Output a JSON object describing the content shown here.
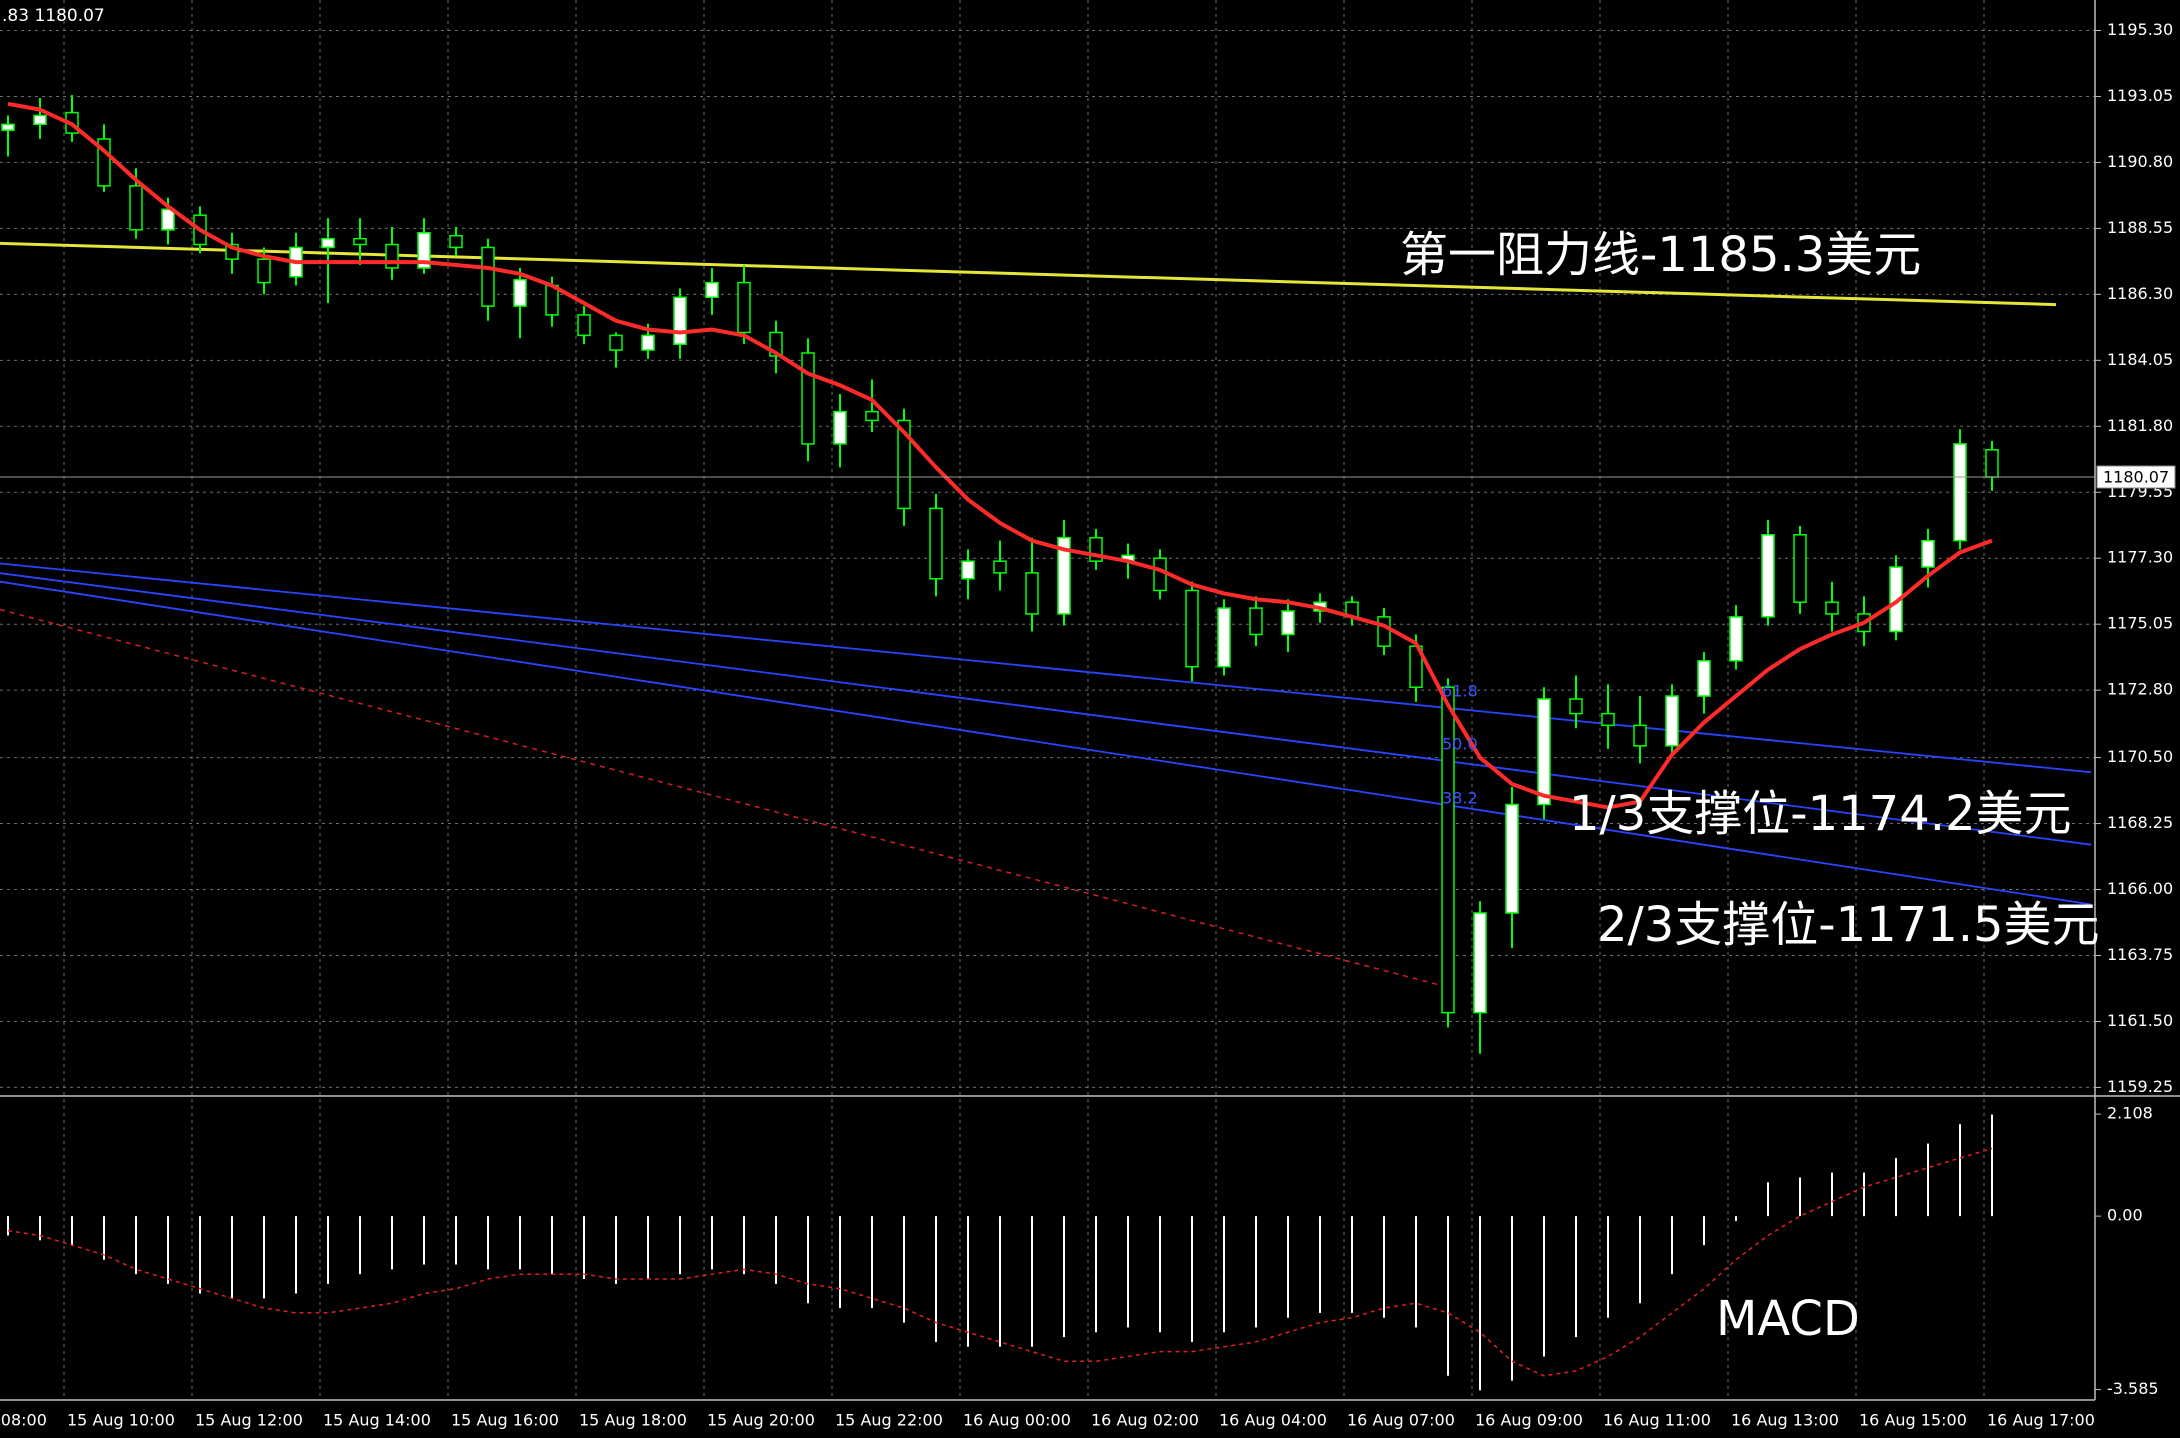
{
  "chart_data": [
    {
      "type": "candlestick",
      "header": ".83 1180.07",
      "categories": [
        "15 Aug 08:00",
        null,
        null,
        null,
        "15 Aug 10:00",
        null,
        null,
        null,
        "15 Aug 12:00",
        null,
        null,
        null,
        "15 Aug 14:00",
        null,
        null,
        null,
        "15 Aug 16:00",
        null,
        null,
        null,
        "15 Aug 18:00",
        null,
        null,
        null,
        "15 Aug 20:00",
        null,
        null,
        null,
        "15 Aug 22:00",
        null,
        null,
        null,
        "16 Aug 00:00",
        null,
        null,
        null,
        "16 Aug 02:00",
        null,
        null,
        null,
        "16 Aug 04:00",
        null,
        null,
        null,
        "16 Aug 07:00",
        null,
        null,
        null,
        "16 Aug 09:00",
        null,
        null,
        null,
        "16 Aug 11:00",
        null,
        null,
        null,
        "16 Aug 13:00",
        null,
        null,
        null,
        "16 Aug 15:00",
        null,
        null,
        null,
        "16 Aug 17:00"
      ],
      "open": [
        null,
        null,
        1191.9,
        1192.1,
        1192.5,
        1191.6,
        1190.0,
        1188.5,
        1189.0,
        1188.0,
        1187.5,
        1186.9,
        1187.9,
        1188.2,
        1188.0,
        1187.2,
        1188.3,
        1187.9,
        1185.9,
        1186.6,
        1185.6,
        1184.9,
        1184.4,
        1184.6,
        1186.2,
        1186.7,
        1185.0,
        1184.3,
        1181.2,
        1182.3,
        1182.0,
        1179.0,
        1176.6,
        1177.2,
        1176.8,
        1175.4,
        1178.0,
        1177.2,
        1177.3,
        1176.2,
        1173.6,
        1175.6,
        1174.7,
        1175.5,
        1175.8,
        1175.3,
        1174.3,
        1172.9,
        1161.8,
        1165.2,
        1168.9,
        1172.5,
        1172.0,
        1171.6,
        1170.9,
        1172.6,
        1173.8,
        1175.3,
        1178.1,
        1175.8,
        1175.4,
        1174.8,
        1177.0,
        1177.9,
        1181.0
      ],
      "high": [
        null,
        null,
        1192.4,
        1193.0,
        1193.1,
        1192.1,
        1190.6,
        1189.6,
        1189.3,
        1188.4,
        1187.9,
        1188.4,
        1188.9,
        1188.9,
        1188.6,
        1188.9,
        1188.6,
        1188.2,
        1187.2,
        1186.9,
        1185.9,
        1185.0,
        1185.3,
        1186.5,
        1187.2,
        1187.3,
        1185.4,
        1184.8,
        1182.9,
        1183.4,
        1182.4,
        1179.5,
        1177.6,
        1177.9,
        1178.0,
        1178.6,
        1178.3,
        1177.8,
        1177.6,
        1176.5,
        1175.9,
        1176.0,
        1175.9,
        1176.1,
        1176.0,
        1175.6,
        1174.7,
        1173.2,
        1165.6,
        1169.5,
        1172.9,
        1173.3,
        1173.0,
        1172.6,
        1173.0,
        1174.1,
        1175.7,
        1178.6,
        1178.4,
        1176.5,
        1176.0,
        1177.4,
        1178.3,
        1181.7,
        1181.3
      ],
      "low": [
        null,
        null,
        1191.0,
        1191.6,
        1191.5,
        1189.8,
        1188.2,
        1188.0,
        1187.7,
        1187.0,
        1186.3,
        1186.6,
        1186.0,
        1187.3,
        1186.8,
        1187.0,
        1187.6,
        1185.4,
        1184.8,
        1185.2,
        1184.6,
        1183.8,
        1184.1,
        1184.1,
        1185.6,
        1184.6,
        1183.6,
        1180.6,
        1180.4,
        1181.6,
        1178.4,
        1176.0,
        1175.9,
        1176.2,
        1174.8,
        1175.0,
        1176.9,
        1176.6,
        1175.9,
        1173.1,
        1173.3,
        1174.3,
        1174.1,
        1175.1,
        1175.0,
        1174.0,
        1172.4,
        1161.3,
        1160.4,
        1164.0,
        1168.4,
        1171.5,
        1170.8,
        1170.3,
        1170.6,
        1172.0,
        1173.5,
        1175.0,
        1175.4,
        1174.8,
        1174.3,
        1174.5,
        1176.3,
        1177.6,
        1179.6
      ],
      "close": [
        null,
        null,
        1192.1,
        1192.4,
        1191.8,
        1190.0,
        1188.5,
        1189.2,
        1188.0,
        1187.5,
        1186.7,
        1187.9,
        1188.2,
        1188.0,
        1187.2,
        1188.4,
        1187.9,
        1185.9,
        1186.8,
        1185.6,
        1184.9,
        1184.4,
        1184.9,
        1186.2,
        1186.7,
        1185.0,
        1184.2,
        1181.2,
        1182.3,
        1182.0,
        1179.0,
        1176.6,
        1177.2,
        1176.8,
        1175.4,
        1178.0,
        1177.2,
        1177.4,
        1176.2,
        1173.6,
        1175.6,
        1174.7,
        1175.5,
        1175.8,
        1175.3,
        1174.3,
        1172.9,
        1161.8,
        1165.2,
        1168.9,
        1172.5,
        1172.0,
        1171.6,
        1170.9,
        1172.6,
        1173.8,
        1175.3,
        1178.1,
        1175.8,
        1175.4,
        1174.8,
        1177.0,
        1177.9,
        1181.2,
        1180.07
      ],
      "candle_color": "#00ff00",
      "ma": {
        "color": "#ff2a2a",
        "values": [
          null,
          null,
          1192.8,
          1192.6,
          1192.1,
          1191.2,
          1190.2,
          1189.3,
          1188.5,
          1187.9,
          1187.6,
          1187.4,
          1187.4,
          1187.4,
          1187.4,
          1187.4,
          1187.3,
          1187.2,
          1187.0,
          1186.6,
          1186.0,
          1185.4,
          1185.1,
          1185.0,
          1185.1,
          1184.9,
          1184.3,
          1183.6,
          1183.2,
          1182.7,
          1181.6,
          1180.4,
          1179.3,
          1178.5,
          1177.9,
          1177.6,
          1177.4,
          1177.2,
          1176.9,
          1176.4,
          1176.1,
          1175.9,
          1175.8,
          1175.6,
          1175.3,
          1175.0,
          1174.4,
          1172.3,
          1170.5,
          1169.6,
          1169.2,
          1169.0,
          1168.8,
          1169.0,
          1170.6,
          1171.7,
          1172.6,
          1173.5,
          1174.2,
          1174.7,
          1175.1,
          1175.8,
          1176.7,
          1177.5,
          1177.9
        ]
      },
      "trend_lines": [
        {
          "color": "#e6e63a",
          "x": [
            1.75,
            66
          ],
          "y": [
            1188.04,
            1185.95
          ]
        },
        {
          "color": "#2a44ff",
          "x": [
            1.75,
            67.1
          ],
          "y": [
            1177.12,
            1170.0
          ]
        },
        {
          "color": "#2a44ff",
          "x": [
            1.75,
            67.1
          ],
          "y": [
            1176.79,
            1167.53
          ]
        },
        {
          "color": "#2a44ff",
          "x": [
            1.75,
            67.1
          ],
          "y": [
            1176.5,
            1165.49
          ]
        },
        {
          "color": "#d02020",
          "x": [
            1.75,
            47.1
          ],
          "y": [
            1175.55,
            1162.64
          ],
          "dashed": true
        }
      ],
      "fib_labels": [
        "61.8",
        "50.0",
        "38.2"
      ],
      "annotations": [
        "第一阻力线-1185.3美元",
        "1/3支撑位-1174.2美元",
        "2/3支撑位-1171.5美元"
      ],
      "last_price": 1180.07,
      "ylim": [
        1159.06,
        1196.34
      ],
      "yticks": [
        {
          "value": 1195.3,
          "label": "1195.30"
        },
        1193.05,
        {
          "value": 1190.8,
          "label": "1190.80"
        },
        1188.55,
        {
          "value": 1186.3,
          "label": "1186.30"
        },
        1184.05,
        {
          "value": 1181.8,
          "label": "1181.80"
        },
        1179.55,
        {
          "value": 1177.3,
          "label": "1177.30"
        },
        1175.05,
        {
          "value": 1172.8,
          "label": "1172.80"
        },
        {
          "value": 1170.5,
          "label": "1170.50"
        },
        1168.25,
        {
          "value": 1166,
          "label": "1166.00"
        },
        1163.75,
        {
          "value": 1161.5,
          "label": "1161.50"
        },
        1159.25
      ],
      "grid": true
    },
    {
      "type": "macd",
      "title": "MACD",
      "color": "#ffffff",
      "values": [
        null,
        null,
        -0.4,
        -0.5,
        -0.6,
        -0.9,
        -1.2,
        -1.4,
        -1.6,
        -1.7,
        -1.7,
        -1.6,
        -1.4,
        -1.2,
        -1.1,
        -1.0,
        -1.0,
        -1.1,
        -1.1,
        -1.2,
        -1.3,
        -1.4,
        -1.3,
        -1.2,
        -1.1,
        -1.2,
        -1.4,
        -1.8,
        -1.9,
        -1.9,
        -2.2,
        -2.6,
        -2.7,
        -2.7,
        -2.7,
        -2.5,
        -2.4,
        -2.3,
        -2.4,
        -2.6,
        -2.4,
        -2.3,
        -2.1,
        -2.0,
        -2.0,
        -2.1,
        -2.3,
        -3.3,
        -3.6,
        -3.4,
        -2.9,
        -2.5,
        -2.1,
        -1.8,
        -1.2,
        -0.6,
        -0.1,
        0.7,
        0.8,
        0.9,
        0.9,
        1.2,
        1.5,
        1.9,
        2.1
      ],
      "signal": {
        "color": "#e02020",
        "values": [
          null,
          null,
          -0.3,
          -0.4,
          -0.6,
          -0.8,
          -1.1,
          -1.3,
          -1.5,
          -1.7,
          -1.9,
          -2.0,
          -2.0,
          -1.9,
          -1.8,
          -1.6,
          -1.5,
          -1.3,
          -1.2,
          -1.2,
          -1.2,
          -1.3,
          -1.3,
          -1.3,
          -1.2,
          -1.1,
          -1.2,
          -1.4,
          -1.5,
          -1.7,
          -1.9,
          -2.2,
          -2.4,
          -2.6,
          -2.8,
          -3.0,
          -3.0,
          -2.9,
          -2.8,
          -2.8,
          -2.7,
          -2.6,
          -2.4,
          -2.2,
          -2.1,
          -1.9,
          -1.8,
          -2.0,
          -2.4,
          -3.0,
          -3.3,
          -3.2,
          -2.9,
          -2.5,
          -2.0,
          -1.5,
          -0.9,
          -0.4,
          0.0,
          0.3,
          0.6,
          0.8,
          1.0,
          1.2,
          1.4
        ]
      },
      "ylim": [
        -3.8,
        2.4
      ],
      "yticks": [
        2.108,
        {
          "value": 0,
          "label": "0.00"
        },
        -3.585
      ]
    }
  ]
}
